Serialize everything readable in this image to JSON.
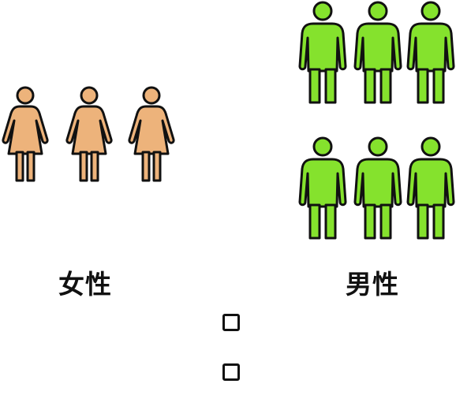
{
  "groups": {
    "female": {
      "label": "女性",
      "count": 3,
      "color": "#edb37b",
      "icon": "woman-icon"
    },
    "male": {
      "label": "男性",
      "count": 6,
      "color": "#85e22d",
      "icon": "man-icon"
    }
  },
  "answer_boxes": 2
}
